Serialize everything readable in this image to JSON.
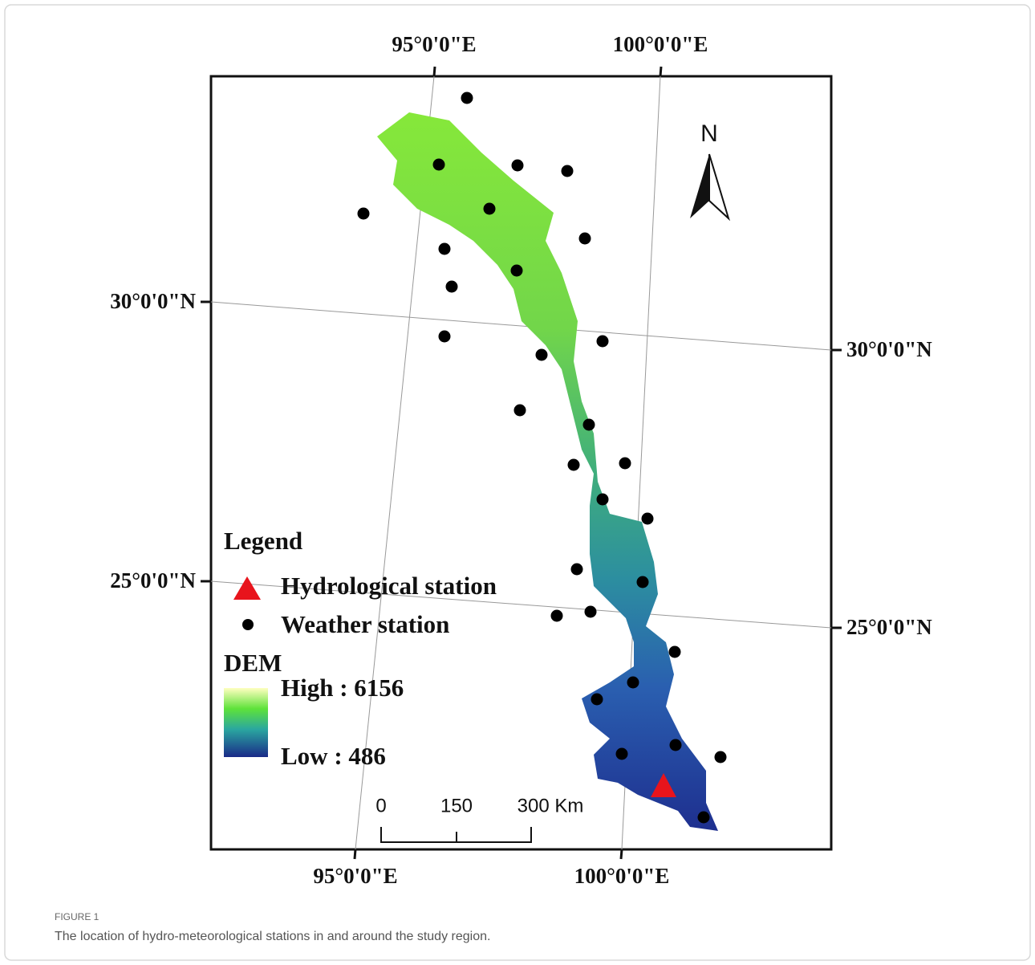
{
  "map": {
    "graticule": {
      "top_labels": [
        "95°0'0\"E",
        "100°0'0\"E"
      ],
      "bottom_labels": [
        "95°0'0\"E",
        "100°0'0\"E"
      ],
      "left_labels": [
        "30°0'0\"N",
        "25°0'0\"N"
      ],
      "right_labels": [
        "30°0'0\"N",
        "25°0'0\"N"
      ]
    },
    "north_arrow": "N",
    "legend": {
      "title": "Legend",
      "items": [
        "Hydrological station",
        "Weather station"
      ],
      "dem_title": "DEM",
      "dem_high": "High : 6156",
      "dem_low": "Low : 486"
    },
    "scale_bar": [
      "0",
      "150",
      "300 Km"
    ]
  },
  "figure": {
    "label": "FIGURE 1",
    "caption": "The location of hydro-meteorological stations in and around the study region."
  }
}
